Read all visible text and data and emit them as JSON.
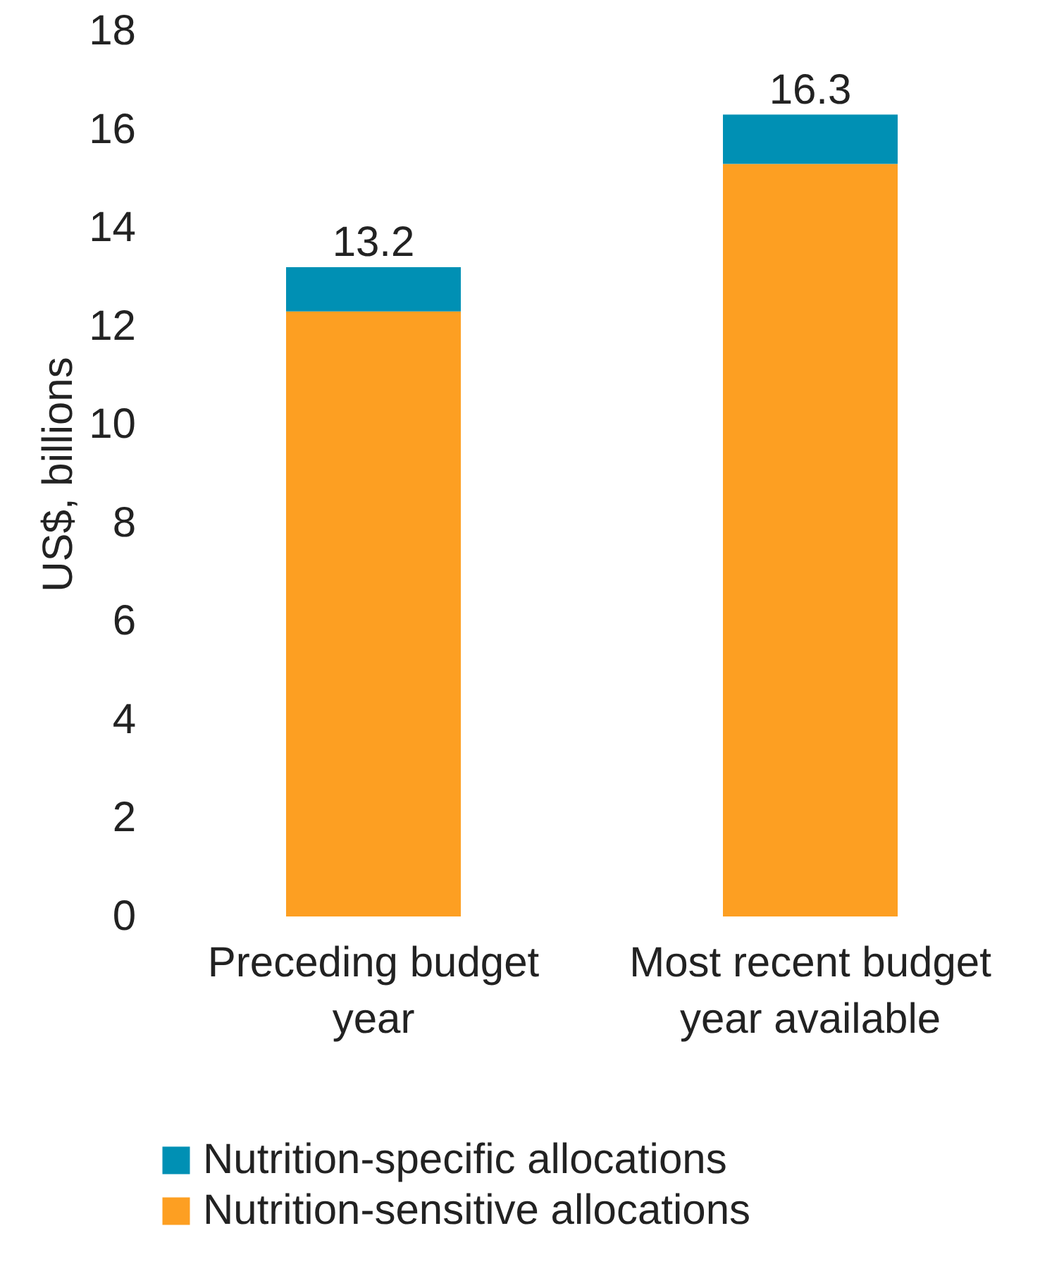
{
  "chart_data": {
    "type": "bar",
    "stacked": true,
    "categories": [
      "Preceding budget year",
      "Most recent budget year available"
    ],
    "series": [
      {
        "name": "Nutrition-sensitive allocations",
        "color": "#fd9f22",
        "values": [
          12.3,
          15.3
        ]
      },
      {
        "name": "Nutrition-specific allocations",
        "color": "#0090b4",
        "values": [
          0.9,
          1.0
        ]
      }
    ],
    "totals": [
      "13.2",
      "16.3"
    ],
    "ylabel": "US$, billions",
    "ylim": [
      0,
      18
    ],
    "yticks": [
      0,
      2,
      4,
      6,
      8,
      10,
      12,
      14,
      16,
      18
    ],
    "grid": false,
    "legend": "bottom"
  }
}
